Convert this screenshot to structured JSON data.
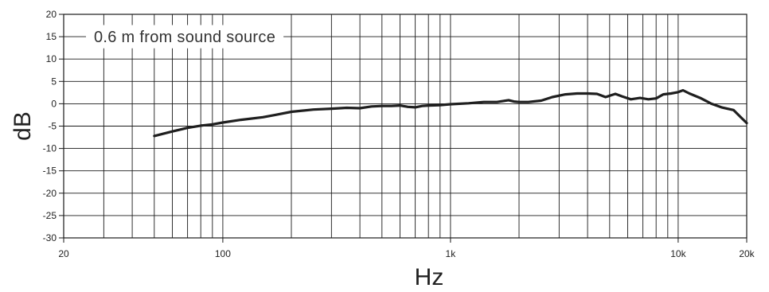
{
  "chart_data": {
    "type": "line",
    "title": "",
    "xlabel": "Hz",
    "ylabel": "dB",
    "xscale": "log",
    "xlim": [
      20,
      20000
    ],
    "ylim": [
      -30,
      20
    ],
    "grid": true,
    "annotation": "0.6 m from sound source",
    "x_tick_labels": [
      {
        "value": 20,
        "label": "20"
      },
      {
        "value": 100,
        "label": "100"
      },
      {
        "value": 1000,
        "label": "1k"
      },
      {
        "value": 10000,
        "label": "10k"
      },
      {
        "value": 20000,
        "label": "20k"
      }
    ],
    "y_tick_labels": [
      {
        "value": 20,
        "label": "20"
      },
      {
        "value": 15,
        "label": "15"
      },
      {
        "value": 10,
        "label": "10"
      },
      {
        "value": 5,
        "label": "5"
      },
      {
        "value": 0,
        "label": "0"
      },
      {
        "value": -5,
        "label": "-5"
      },
      {
        "value": -10,
        "label": "-10"
      },
      {
        "value": -15,
        "label": "-15"
      },
      {
        "value": -20,
        "label": "-20"
      },
      {
        "value": -25,
        "label": "-25"
      },
      {
        "value": -30,
        "label": "-30"
      }
    ],
    "series": [
      {
        "color": "#1f1f1f",
        "points": [
          [
            50,
            -7.2
          ],
          [
            60,
            -6.2
          ],
          [
            70,
            -5.4
          ],
          [
            80,
            -4.9
          ],
          [
            90,
            -4.6
          ],
          [
            100,
            -4.2
          ],
          [
            120,
            -3.6
          ],
          [
            150,
            -3.0
          ],
          [
            170,
            -2.5
          ],
          [
            200,
            -1.8
          ],
          [
            250,
            -1.3
          ],
          [
            300,
            -1.1
          ],
          [
            350,
            -0.9
          ],
          [
            400,
            -1.0
          ],
          [
            450,
            -0.6
          ],
          [
            500,
            -0.5
          ],
          [
            550,
            -0.5
          ],
          [
            600,
            -0.4
          ],
          [
            650,
            -0.7
          ],
          [
            700,
            -0.8
          ],
          [
            750,
            -0.5
          ],
          [
            800,
            -0.4
          ],
          [
            900,
            -0.3
          ],
          [
            1000,
            -0.1
          ],
          [
            1200,
            0.1
          ],
          [
            1400,
            0.4
          ],
          [
            1600,
            0.4
          ],
          [
            1800,
            0.8
          ],
          [
            1900,
            0.5
          ],
          [
            2000,
            0.4
          ],
          [
            2200,
            0.4
          ],
          [
            2500,
            0.7
          ],
          [
            2800,
            1.5
          ],
          [
            3200,
            2.1
          ],
          [
            3600,
            2.3
          ],
          [
            4000,
            2.3
          ],
          [
            4400,
            2.2
          ],
          [
            4800,
            1.5
          ],
          [
            5300,
            2.2
          ],
          [
            5700,
            1.6
          ],
          [
            6200,
            1.0
          ],
          [
            6800,
            1.3
          ],
          [
            7400,
            1.0
          ],
          [
            8000,
            1.2
          ],
          [
            8600,
            2.1
          ],
          [
            9300,
            2.3
          ],
          [
            10000,
            2.6
          ],
          [
            10500,
            3.0
          ],
          [
            11200,
            2.3
          ],
          [
            12500,
            1.3
          ],
          [
            14000,
            0.0
          ],
          [
            15500,
            -0.8
          ],
          [
            17500,
            -1.4
          ],
          [
            19000,
            -3.2
          ],
          [
            20000,
            -4.3
          ]
        ]
      }
    ]
  }
}
